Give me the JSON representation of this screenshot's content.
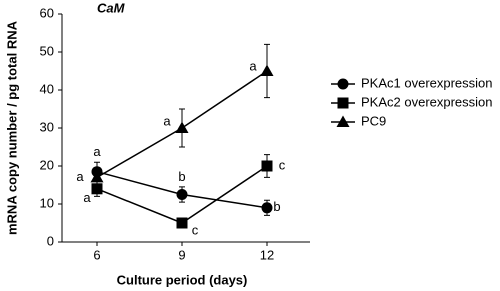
{
  "chart_data": {
    "type": "line",
    "title": "CaM",
    "x_label": "Culture period (days)",
    "y_label": "mRNA copy number / pg total RNA",
    "categories": [
      "6",
      "9",
      "12"
    ],
    "series": [
      {
        "name": "PKAc1 overexpression",
        "color": "#000000",
        "marker": "circle",
        "values": [
          18.5,
          12.5,
          9
        ],
        "errors": [
          2.5,
          2,
          2
        ],
        "labels": [
          "a",
          "b",
          "b"
        ]
      },
      {
        "name": "PKAc2 overexpression",
        "color": "#000000",
        "marker": "square",
        "values": [
          14,
          5,
          20
        ],
        "errors": [
          2,
          0.8,
          3
        ],
        "labels": [
          "a",
          "c",
          "c"
        ]
      },
      {
        "name": "PC9",
        "color": "#000000",
        "marker": "triangle",
        "values": [
          17,
          30,
          45
        ],
        "errors": [
          1,
          5,
          7
        ],
        "labels": [
          "a",
          "a",
          "a"
        ]
      }
    ],
    "ylim": [
      0,
      60
    ],
    "yticks": [
      0,
      10,
      20,
      30,
      40,
      50,
      60
    ],
    "legend": "right"
  }
}
